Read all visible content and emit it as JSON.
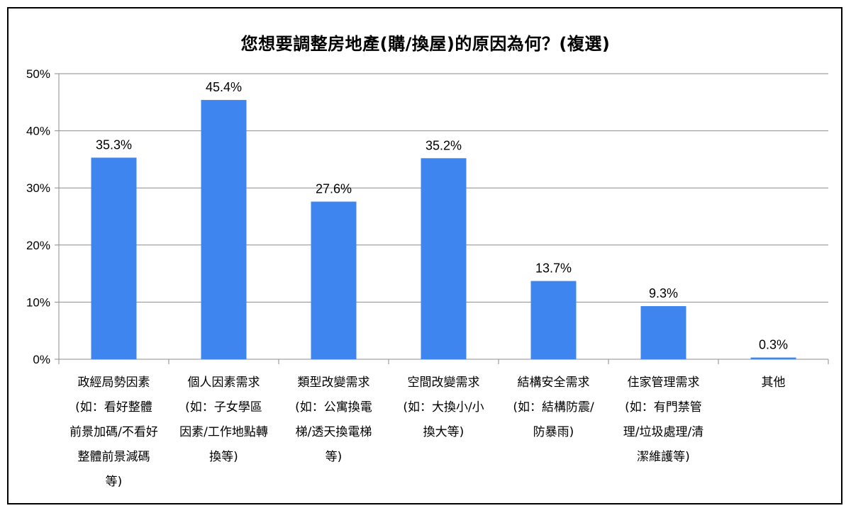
{
  "chart_data": {
    "type": "bar",
    "title": "您想要調整房地產(購/換屋)的原因為何？(複選)",
    "xlabel": "",
    "ylabel": "",
    "ylim": [
      0,
      50
    ],
    "yticks": [
      "0%",
      "10%",
      "20%",
      "30%",
      "40%",
      "50%"
    ],
    "grid": true,
    "bar_color": "#3F85F0",
    "categories": [
      [
        "政經局勢因素",
        "(如：看好整體",
        "前景加碼/不看好",
        "整體前景減碼",
        "等)"
      ],
      [
        "個人因素需求",
        "(如：子女學區",
        "因素/工作地點轉",
        "換等)"
      ],
      [
        "類型改變需求",
        "(如：公寓換電",
        "梯/透天換電梯",
        "等)"
      ],
      [
        "空間改變需求",
        "(如：大換小/小",
        "換大等)"
      ],
      [
        "結構安全需求",
        "(如：結構防震/",
        "防暴雨)"
      ],
      [
        "住家管理需求",
        "(如：有門禁管",
        "理/垃圾處理/清",
        "潔維護等)"
      ],
      [
        "其他"
      ]
    ],
    "values": [
      35.3,
      45.4,
      27.6,
      35.2,
      13.7,
      9.3,
      0.3
    ],
    "data_labels": [
      "35.3%",
      "45.4%",
      "27.6%",
      "35.2%",
      "13.7%",
      "9.3%",
      "0.3%"
    ]
  }
}
